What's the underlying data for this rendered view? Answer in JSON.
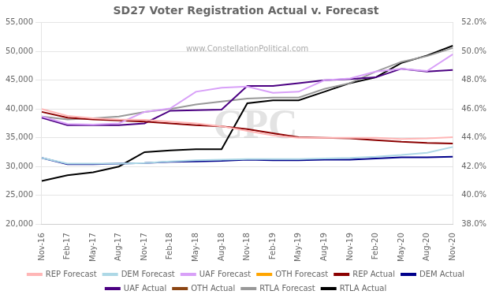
{
  "chart_data": {
    "type": "line",
    "title": "SD27 Voter Registration Actual v. Forecast",
    "annotations": [
      "www.ConstellationPolitical.com",
      "CPC"
    ],
    "categories": [
      "Nov-16",
      "Feb-17",
      "May-17",
      "Aug-17",
      "Nov-17",
      "Feb-18",
      "May-18",
      "Aug-18",
      "Nov-18",
      "Feb-19",
      "May-19",
      "Aug-19",
      "Nov-19",
      "Feb-20",
      "May-20",
      "Aug-20",
      "Nov-20"
    ],
    "series": [
      {
        "name": "REP Forecast",
        "color": "#ffb6b6",
        "values": [
          40000,
          38800,
          38400,
          38200,
          38100,
          37800,
          37500,
          37000,
          36200,
          35400,
          35000,
          35000,
          35000,
          35000,
          34800,
          34900,
          35100
        ]
      },
      {
        "name": "DEM Forecast",
        "color": "#add8e6",
        "values": [
          31500,
          30500,
          30500,
          30500,
          30600,
          30900,
          31100,
          31200,
          31300,
          31300,
          31300,
          31400,
          31500,
          31700,
          32000,
          32400,
          33400
        ]
      },
      {
        "name": "UAF Forecast",
        "color": "#d8a0f8",
        "values": [
          38700,
          37400,
          37300,
          37500,
          39500,
          40100,
          43000,
          43700,
          43900,
          42800,
          43000,
          45000,
          45300,
          46500,
          47000,
          46600,
          49500
        ]
      },
      {
        "name": "OTH Forecast",
        "color": "#ffa500",
        "values": [
          null,
          null,
          null,
          null,
          null,
          null,
          null,
          null,
          null,
          null,
          null,
          null,
          null,
          null,
          null,
          null,
          null
        ]
      },
      {
        "name": "REP Actual",
        "color": "#8b0000",
        "values": [
          39500,
          38500,
          38200,
          38000,
          37800,
          37500,
          37200,
          37000,
          36500,
          35800,
          35100,
          35000,
          34900,
          34600,
          34300,
          34100,
          34000
        ]
      },
      {
        "name": "DEM Actual",
        "color": "#00008b",
        "values": [
          31500,
          30400,
          30400,
          30500,
          30600,
          30800,
          30900,
          31000,
          31200,
          31100,
          31100,
          31200,
          31200,
          31400,
          31600,
          31600,
          31700
        ]
      },
      {
        "name": "UAF Actual",
        "color": "#4b0082",
        "values": [
          38500,
          37200,
          37200,
          37200,
          37500,
          39700,
          39800,
          39900,
          44000,
          44000,
          44500,
          45000,
          45200,
          45500,
          47000,
          46500,
          46800
        ]
      },
      {
        "name": "OTH Actual",
        "color": "#8b4513",
        "values": [
          null,
          null,
          null,
          null,
          null,
          null,
          null,
          null,
          null,
          null,
          null,
          null,
          null,
          null,
          null,
          null,
          null
        ]
      },
      {
        "name": "RTLA Forecast",
        "color": "#999999",
        "values": [
          38700,
          38200,
          38400,
          38700,
          39500,
          40000,
          40800,
          41300,
          41800,
          42000,
          42000,
          43500,
          44500,
          46500,
          48200,
          49200,
          50600
        ]
      },
      {
        "name": "RTLA Actual",
        "color": "#000000",
        "values": [
          27500,
          28500,
          29000,
          30000,
          32500,
          32800,
          33000,
          33000,
          41000,
          41500,
          41500,
          43000,
          44500,
          45500,
          48000,
          49300,
          51000
        ]
      }
    ],
    "ylim": [
      20000,
      55000
    ],
    "yticks": [
      {
        "value": 20000,
        "label": "20,000"
      },
      {
        "value": 25000,
        "label": "25,000"
      },
      {
        "value": 30000,
        "label": "30,000"
      },
      {
        "value": 35000,
        "label": "35,000"
      },
      {
        "value": 40000,
        "label": "40,000"
      },
      {
        "value": 45000,
        "label": "45,000"
      },
      {
        "value": 50000,
        "label": "50,000"
      },
      {
        "value": 55000,
        "label": "55,000"
      }
    ],
    "y2lim": [
      0.38,
      0.52
    ],
    "y2ticks": [
      {
        "value": 0.38,
        "label": "38.0%"
      },
      {
        "value": 0.4,
        "label": "40.0%"
      },
      {
        "value": 0.42,
        "label": "42.0%"
      },
      {
        "value": 0.44,
        "label": "44.0%"
      },
      {
        "value": 0.46,
        "label": "46.0%"
      },
      {
        "value": 0.48,
        "label": "48.0%"
      },
      {
        "value": 0.5,
        "label": "50.0%"
      },
      {
        "value": 0.52,
        "label": "52.0%"
      }
    ],
    "grid": true,
    "legend": "bottom"
  }
}
